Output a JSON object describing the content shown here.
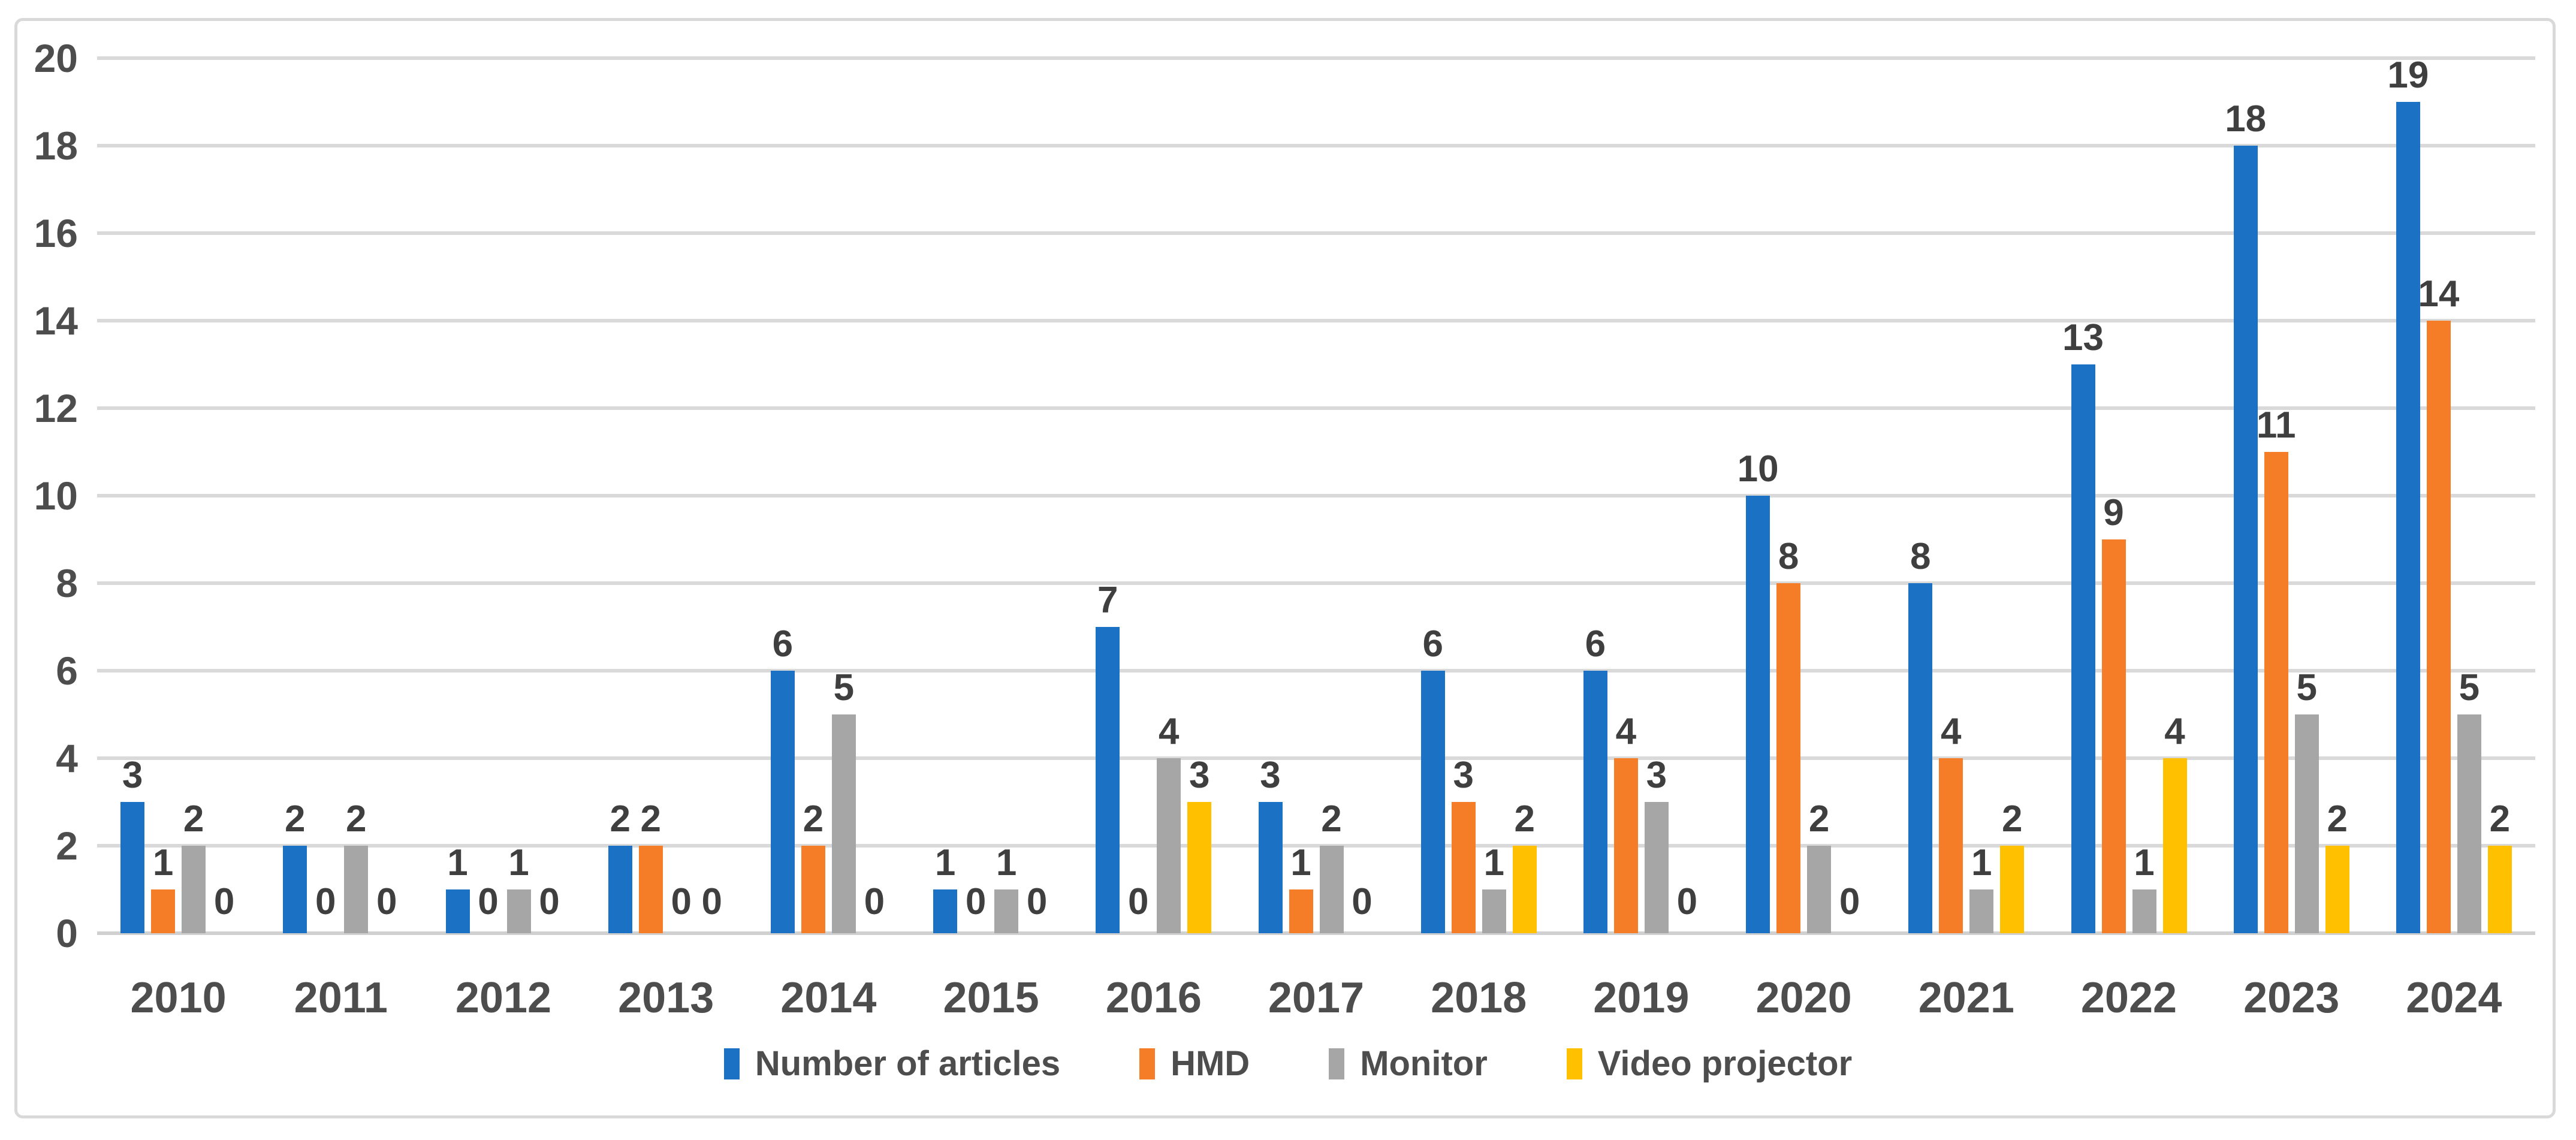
{
  "chart_data": {
    "type": "bar",
    "title": "",
    "xlabel": "",
    "ylabel": "",
    "categories": [
      "2010",
      "2011",
      "2012",
      "2013",
      "2014",
      "2015",
      "2016",
      "2017",
      "2018",
      "2019",
      "2020",
      "2021",
      "2022",
      "2023",
      "2024"
    ],
    "series": [
      {
        "name": "Number of articles",
        "color": "#1B72C4",
        "values": [
          3,
          2,
          1,
          2,
          6,
          1,
          7,
          3,
          6,
          6,
          10,
          8,
          13,
          18,
          19
        ]
      },
      {
        "name": "HMD",
        "color": "#F57D28",
        "values": [
          1,
          0,
          0,
          2,
          2,
          0,
          0,
          1,
          3,
          4,
          8,
          4,
          9,
          11,
          14
        ]
      },
      {
        "name": "Monitor",
        "color": "#A6A6A6",
        "values": [
          2,
          2,
          1,
          0,
          5,
          1,
          4,
          2,
          1,
          3,
          2,
          1,
          1,
          5,
          5
        ]
      },
      {
        "name": "Video projector",
        "color": "#FFC000",
        "values": [
          0,
          0,
          0,
          0,
          0,
          0,
          3,
          0,
          2,
          0,
          0,
          2,
          4,
          2,
          2
        ]
      }
    ],
    "y_ticks": [
      0,
      2,
      4,
      6,
      8,
      10,
      12,
      14,
      16,
      18,
      20
    ],
    "ylim": [
      0,
      20
    ],
    "grid": true,
    "data_labels": true,
    "legend_position": "bottom"
  },
  "styles": {
    "grid_color": "#D9D9D9",
    "frame_border_color": "#D9D9D9",
    "axis_text_color": "#4D4D4D",
    "data_label_color": "#3F3F3F",
    "background": "#FFFFFF"
  }
}
